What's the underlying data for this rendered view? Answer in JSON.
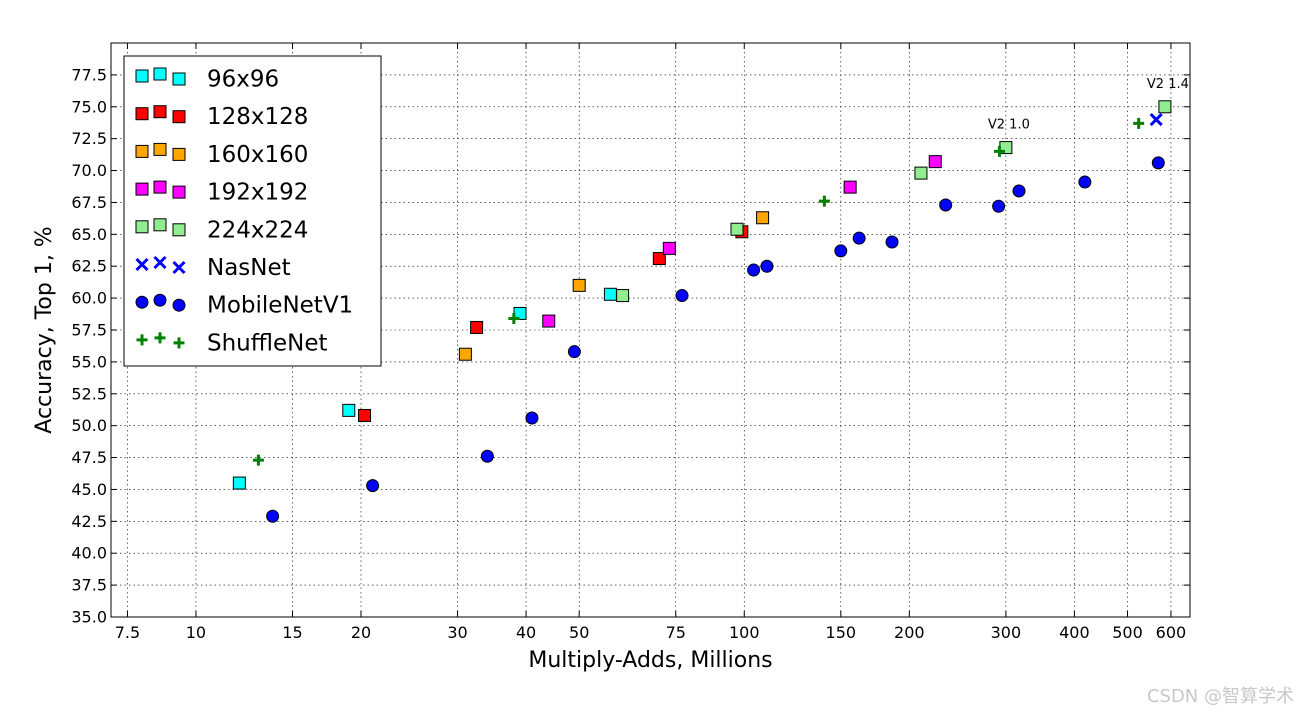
{
  "chart_data": {
    "type": "scatter",
    "xscale": "log",
    "xlabel": "Multiply-Adds, Millions",
    "ylabel": "Accuracy, Top 1, %",
    "xlim": [
      7.0,
      650
    ],
    "ylim": [
      35.0,
      80.0
    ],
    "xticks": [
      7.5,
      10,
      15,
      20,
      30,
      40,
      50,
      75,
      100,
      150,
      200,
      300,
      400,
      500,
      600
    ],
    "yticks": [
      35.0,
      37.5,
      40.0,
      42.5,
      45.0,
      47.5,
      50.0,
      52.5,
      55.0,
      57.5,
      60.0,
      62.5,
      65.0,
      67.5,
      70.0,
      72.5,
      75.0,
      77.5
    ],
    "grid": true,
    "legend_position": "top-left",
    "series": [
      {
        "name": "96x96",
        "marker": "square",
        "color": "#00ffff",
        "points": [
          [
            12,
            45.5
          ],
          [
            19,
            51.2
          ],
          [
            39,
            58.8
          ],
          [
            57,
            60.3
          ]
        ]
      },
      {
        "name": "128x128",
        "marker": "square",
        "color": "#ff0000",
        "points": [
          [
            20.3,
            50.8
          ],
          [
            32.5,
            57.7
          ],
          [
            70,
            63.1
          ],
          [
            99,
            65.2
          ]
        ]
      },
      {
        "name": "160x160",
        "marker": "square",
        "color": "#ffa500",
        "points": [
          [
            31,
            55.6
          ],
          [
            50,
            61.0
          ],
          [
            108,
            66.3
          ]
        ]
      },
      {
        "name": "192x192",
        "marker": "square",
        "color": "#ff00ff",
        "points": [
          [
            44,
            58.2
          ],
          [
            73,
            63.9
          ],
          [
            156,
            68.7
          ],
          [
            223,
            70.7
          ]
        ]
      },
      {
        "name": "224x224",
        "marker": "square",
        "color": "#90ee90",
        "points": [
          [
            60,
            60.2
          ],
          [
            97,
            65.4
          ],
          [
            210,
            69.8
          ],
          [
            300,
            71.8
          ],
          [
            585,
            75.0
          ]
        ]
      },
      {
        "name": "NasNet",
        "marker": "x",
        "color": "#0000ff",
        "points": [
          [
            564,
            74.0
          ]
        ]
      },
      {
        "name": "MobileNetV1",
        "marker": "circle",
        "color": "#0000ff",
        "points": [
          [
            13.8,
            42.9
          ],
          [
            21,
            45.3
          ],
          [
            34,
            47.6
          ],
          [
            41,
            50.6
          ],
          [
            49,
            55.8
          ],
          [
            77,
            60.2
          ],
          [
            104,
            62.2
          ],
          [
            110,
            62.5
          ],
          [
            150,
            63.7
          ],
          [
            162,
            64.7
          ],
          [
            186,
            64.4
          ],
          [
            233,
            67.3
          ],
          [
            291,
            67.2
          ],
          [
            317,
            68.4
          ],
          [
            418,
            69.1
          ],
          [
            569,
            70.6
          ]
        ]
      },
      {
        "name": "ShuffleNet",
        "marker": "plus",
        "color": "#008000",
        "points": [
          [
            13,
            47.3
          ],
          [
            38,
            58.4
          ],
          [
            140,
            67.6
          ],
          [
            292,
            71.5
          ],
          [
            524,
            73.7
          ]
        ]
      }
    ],
    "annotations": [
      {
        "text": "V2 1.0",
        "x": 300,
        "y": 71.8
      },
      {
        "text": "V2 1.4",
        "x": 585,
        "y": 75.0
      }
    ]
  },
  "watermark": "CSDN @智算学术"
}
